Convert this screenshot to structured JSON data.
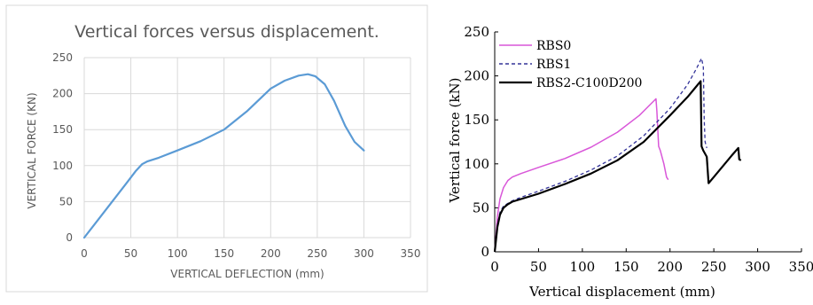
{
  "chart_data": [
    {
      "type": "line",
      "title": "Vertical forces versus displacement.",
      "xlabel": "VERTICAL DEFLECTION (mm)",
      "ylabel": "VERTICAL FORCE (KN)",
      "xlim": [
        0,
        350
      ],
      "ylim": [
        0,
        250
      ],
      "xticks": [
        "0",
        "50",
        "100",
        "150",
        "200",
        "250",
        "300",
        "350"
      ],
      "yticks": [
        "0",
        "50",
        "100",
        "150",
        "200",
        "250"
      ],
      "grid": true,
      "colors": {
        "line": "#5b9bd5",
        "grid": "#d9d9d9",
        "axis_text": "#595959",
        "title": "#595959"
      },
      "series": [
        {
          "x": [
            0,
            15,
            30,
            45,
            55,
            62,
            68,
            80,
            100,
            125,
            150,
            175,
            200,
            215,
            230,
            240,
            248,
            258,
            268,
            280,
            290,
            300
          ],
          "y": [
            0,
            25,
            50,
            75,
            92,
            102,
            106,
            111,
            121,
            134,
            150,
            176,
            207,
            218,
            225,
            227,
            224,
            213,
            190,
            155,
            133,
            121
          ]
        }
      ]
    },
    {
      "type": "line",
      "title": "",
      "xlabel": "Vertical displacement (mm)",
      "ylabel": "Vertical force (kN)",
      "xlim": [
        0,
        350
      ],
      "ylim": [
        0,
        250
      ],
      "xticks": [
        "0",
        "50",
        "100",
        "150",
        "200",
        "250",
        "300",
        "350"
      ],
      "yticks": [
        "0",
        "50",
        "100",
        "150",
        "200",
        "250"
      ],
      "grid": false,
      "legend_position": "top-left",
      "series": [
        {
          "name": "RBS0",
          "color": "#d957d9",
          "style": "solid",
          "x": [
            0,
            3,
            6,
            10,
            15,
            20,
            30,
            50,
            80,
            110,
            140,
            165,
            180,
            184,
            185,
            187,
            189,
            193,
            196,
            198
          ],
          "y": [
            0,
            40,
            60,
            73,
            81,
            85,
            89,
            96,
            106,
            119,
            136,
            155,
            170,
            174,
            160,
            120,
            115,
            100,
            85,
            82
          ]
        },
        {
          "name": "RBS1",
          "color": "#333399",
          "style": "dashed",
          "x": [
            0,
            3,
            6,
            10,
            15,
            20,
            30,
            50,
            80,
            110,
            140,
            170,
            200,
            220,
            230,
            235,
            236,
            238,
            239,
            240,
            242
          ],
          "y": [
            0,
            30,
            45,
            52,
            55,
            58,
            62,
            69,
            80,
            93,
            109,
            132,
            163,
            190,
            208,
            218,
            220,
            210,
            150,
            125,
            118
          ]
        },
        {
          "name": "RBS2-C100D200",
          "color": "#000000",
          "style": "solid",
          "x": [
            0,
            3,
            6,
            10,
            15,
            20,
            30,
            50,
            80,
            110,
            140,
            170,
            200,
            220,
            230,
            235,
            236,
            238,
            242,
            244,
            250,
            260,
            270,
            278,
            279,
            281
          ],
          "y": [
            0,
            28,
            42,
            50,
            54,
            57,
            60,
            66,
            77,
            89,
            104,
            125,
            155,
            176,
            188,
            194,
            120,
            115,
            108,
            78,
            85,
            97,
            109,
            118,
            105,
            104
          ]
        }
      ]
    }
  ]
}
